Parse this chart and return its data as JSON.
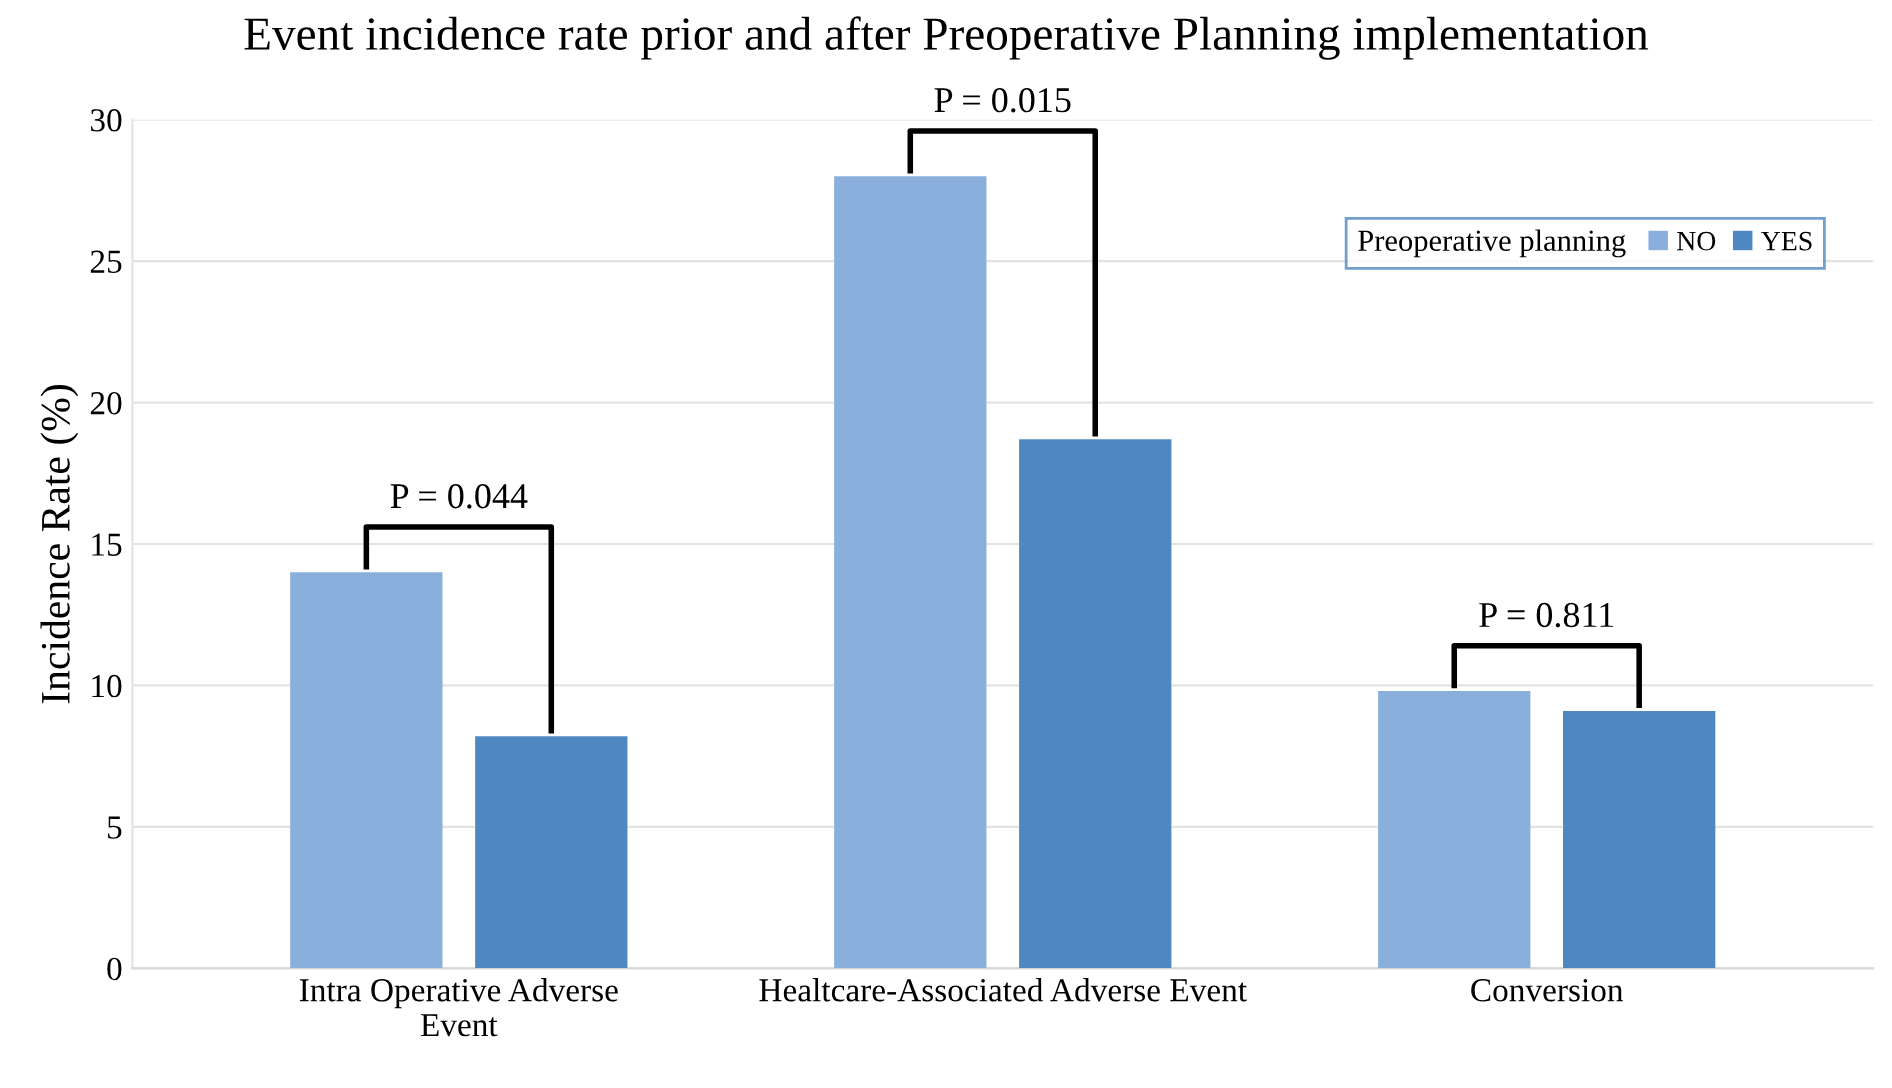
{
  "chart_data": {
    "type": "bar",
    "title": "Event incidence rate prior and after Preoperative Planning implementation",
    "ylabel": "Incidence Rate (%)",
    "categories": [
      "Intra Operative Adverse\nEvent",
      "Healtcare-Associated Adverse Event",
      "Conversion"
    ],
    "series": [
      {
        "name": "NO",
        "color": "#8aafdc",
        "values": [
          14.0,
          28.0,
          9.8
        ]
      },
      {
        "name": "YES",
        "color": "#4f88c0",
        "values": [
          8.2,
          18.7,
          9.1
        ]
      }
    ],
    "legend_title": "Preoperative planning",
    "legend": "top right",
    "ylim": [
      0,
      30
    ],
    "yticks": [
      0,
      5,
      10,
      15,
      20,
      25,
      30
    ],
    "grid": "y",
    "annotations": [
      "P = 0.044",
      "P = 0.015",
      "P = 0.811"
    ]
  }
}
